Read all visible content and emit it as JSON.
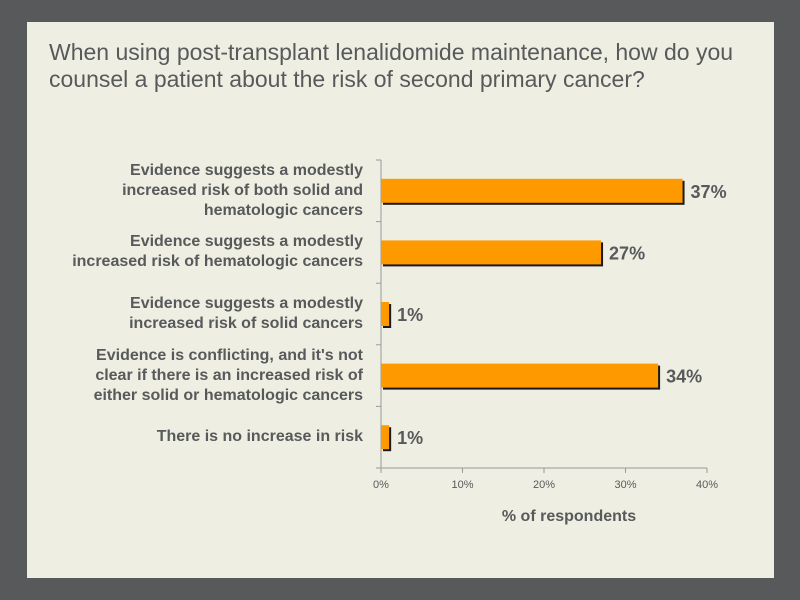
{
  "title": "When using post-transplant lenalidomide maintenance, how do you counsel a patient about the risk of second primary cancer?",
  "chart_data": {
    "type": "bar",
    "orientation": "horizontal",
    "categories": [
      "Evidence suggests a modestly increased risk of both solid and hematologic cancers",
      "Evidence suggests a modestly increased risk of hematologic cancers",
      "Evidence suggests a modestly increased risk of solid cancers",
      "Evidence is conflicting, and it's not clear if there is an increased risk of either solid or hematologic cancers",
      "There is no increase in risk"
    ],
    "category_lines": [
      [
        "Evidence suggests a modestly",
        "increased risk of both solid and",
        "hematologic cancers"
      ],
      [
        "Evidence suggests a modestly",
        "increased risk of hematologic cancers"
      ],
      [
        "Evidence suggests a modestly",
        "increased risk of solid cancers"
      ],
      [
        "Evidence is conflicting, and it's not",
        "clear if there is an increased risk of",
        "either solid or hematologic cancers"
      ],
      [
        "There is no increase in risk"
      ]
    ],
    "values": [
      37,
      27,
      1,
      34,
      1
    ],
    "value_labels": [
      "37%",
      "27%",
      "1%",
      "34%",
      "1%"
    ],
    "xlabel": "% of respondents",
    "ylabel": "",
    "xlim": [
      0,
      40
    ],
    "xticks": [
      0,
      10,
      20,
      30,
      40
    ],
    "xtick_labels": [
      "0%",
      "10%",
      "20%",
      "30%",
      "40%"
    ],
    "grid": false,
    "bar_color": "#ff9900",
    "bar_shadow_color": "#1a1a1a"
  },
  "colors": {
    "background": "#58595b",
    "slide": "#eeefe2",
    "text": "#58595b"
  }
}
